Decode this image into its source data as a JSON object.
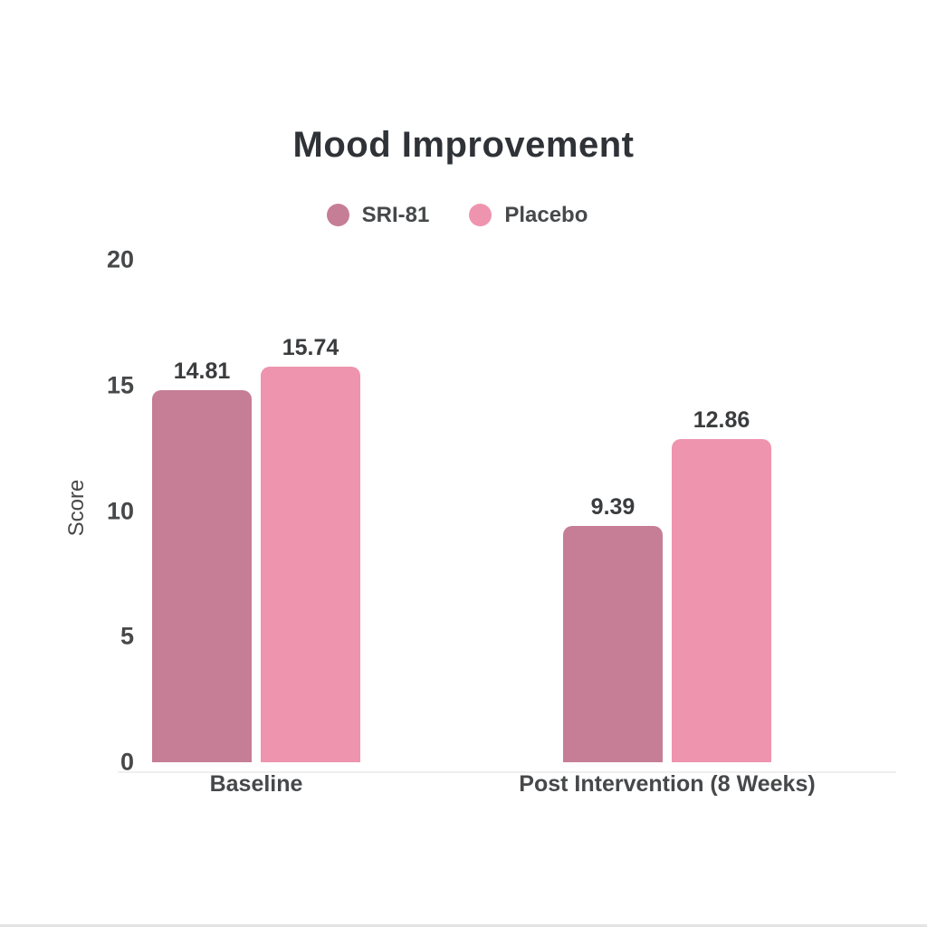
{
  "chart_data": {
    "type": "bar",
    "title": "Mood Improvement",
    "ylabel": "Score",
    "xlabel": "",
    "categories": [
      "Baseline",
      "Post Intervention (8 Weeks)"
    ],
    "series": [
      {
        "name": "SRI-81",
        "color": "#c57e95",
        "values": [
          14.81,
          9.39
        ]
      },
      {
        "name": "Placebo",
        "color": "#ee94ae",
        "values": [
          15.74,
          12.86
        ]
      }
    ],
    "ylim": [
      0,
      20
    ],
    "yticks": [
      0,
      5,
      10,
      15,
      20
    ],
    "grid": false,
    "legend_position": "top",
    "value_label_decimals": 2,
    "colors": {
      "background": "#ffffff",
      "title_text": "#2f3237",
      "axis_text": "#46484a",
      "value_label_text": "#3a3c3e",
      "axis_line": "#efefef"
    }
  }
}
